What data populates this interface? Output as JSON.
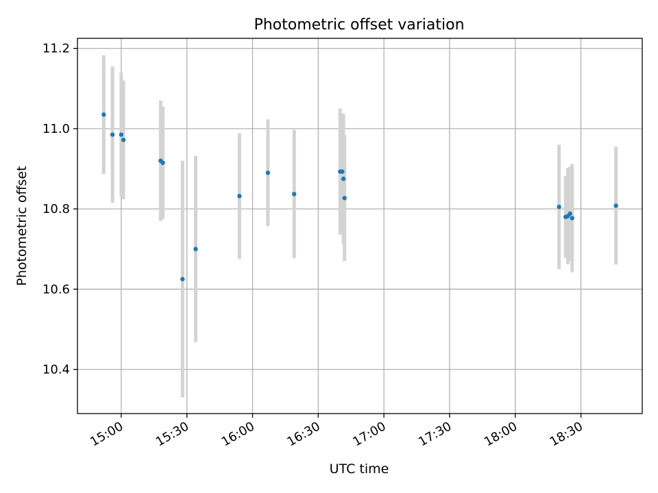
{
  "chart_data": {
    "type": "scatter",
    "title": "Photometric offset variation",
    "xlabel": "UTC time",
    "ylabel": "Photometric offset",
    "x_ticks": [
      "15:00",
      "15:30",
      "16:00",
      "16:30",
      "17:00",
      "17:30",
      "18:00",
      "18:30"
    ],
    "y_ticks": [
      "10.4",
      "10.6",
      "10.8",
      "11.0",
      "11.2"
    ],
    "xlim": [
      "14:40",
      "18:58"
    ],
    "ylim": [
      10.29,
      11.225
    ],
    "grid": true,
    "colors": {
      "points": "#1f77b4",
      "errorbars": "#d3d3d3",
      "grid": "#b0b0b0"
    },
    "points": [
      {
        "x": "14:52",
        "y": 11.035,
        "err": 0.148
      },
      {
        "x": "14:56",
        "y": 10.985,
        "err": 0.17
      },
      {
        "x": "15:00",
        "y": 10.985,
        "err": 0.155
      },
      {
        "x": "15:01",
        "y": 10.972,
        "err": 0.148
      },
      {
        "x": "15:18",
        "y": 10.92,
        "err": 0.15
      },
      {
        "x": "15:19",
        "y": 10.915,
        "err": 0.14
      },
      {
        "x": "15:28",
        "y": 10.625,
        "err": 0.295
      },
      {
        "x": "15:34",
        "y": 10.7,
        "err": 0.232
      },
      {
        "x": "15:54",
        "y": 10.832,
        "err": 0.157
      },
      {
        "x": "16:07",
        "y": 10.89,
        "err": 0.133
      },
      {
        "x": "16:19",
        "y": 10.837,
        "err": 0.16
      },
      {
        "x": "16:40",
        "y": 10.893,
        "err": 0.157
      },
      {
        "x": "16:41",
        "y": 10.893,
        "err": 0.145
      },
      {
        "x": "16:41.5",
        "y": 10.875,
        "err": 0.162
      },
      {
        "x": "16:42",
        "y": 10.827,
        "err": 0.157
      },
      {
        "x": "18:20",
        "y": 10.805,
        "err": 0.155
      },
      {
        "x": "18:23",
        "y": 10.78,
        "err": 0.102
      },
      {
        "x": "18:24",
        "y": 10.782,
        "err": 0.12
      },
      {
        "x": "18:25",
        "y": 10.788,
        "err": 0.117
      },
      {
        "x": "18:26",
        "y": 10.777,
        "err": 0.135
      },
      {
        "x": "18:46",
        "y": 10.808,
        "err": 0.147
      }
    ]
  }
}
